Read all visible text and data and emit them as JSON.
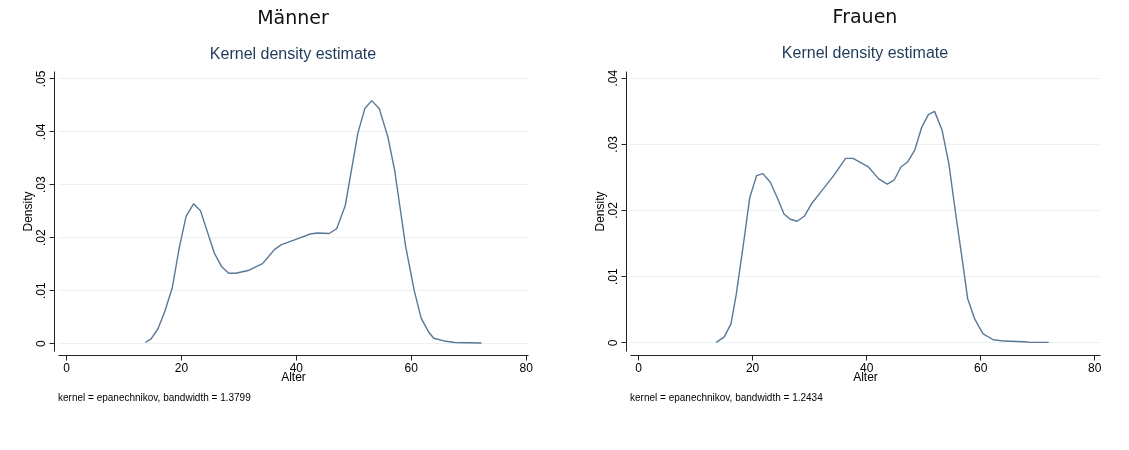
{
  "chart_data": [
    {
      "type": "line",
      "title": "Männer",
      "subtitle": "Kernel density estimate",
      "xlabel": "Alter",
      "ylabel": "Density",
      "annotations": [
        "kernel = epanechnikov, bandwidth = 1.3799"
      ],
      "grid": "y",
      "xlim": [
        -1.4,
        80.4
      ],
      "ylim": [
        -0.0015,
        0.0514
      ],
      "xticks": [
        0,
        20,
        40,
        60,
        80
      ],
      "yticks": [
        0,
        {
          "value": 0.01,
          "label": ".01"
        },
        {
          "value": 0.02,
          "label": ".02"
        },
        {
          "value": 0.03,
          "label": ".03"
        },
        {
          "value": 0.04,
          "label": ".04"
        },
        {
          "value": 0.05,
          "label": ".05"
        }
      ],
      "x": [
        13.8,
        14.8,
        16,
        17.2,
        18.5,
        19.7,
        20.9,
        22.2,
        23.4,
        24.6,
        25.8,
        27.1,
        28.3,
        29.5,
        31.7,
        34.2,
        36.3,
        37.5,
        40,
        42.5,
        43.7,
        45.8,
        47.1,
        48.6,
        50.8,
        52,
        53.2,
        54.5,
        56,
        57.2,
        59.1,
        60.6,
        61.8,
        63.1,
        64,
        65.8,
        67.7,
        72.3
      ],
      "series": [
        {
          "color": "#5a7896",
          "values": [
            0.0001,
            0.0008,
            0.0027,
            0.006,
            0.0105,
            0.018,
            0.024,
            0.0263,
            0.025,
            0.021,
            0.017,
            0.0144,
            0.0132,
            0.0132,
            0.0137,
            0.015,
            0.0177,
            0.0186,
            0.0196,
            0.0206,
            0.0208,
            0.0207,
            0.0216,
            0.026,
            0.0397,
            0.0443,
            0.0458,
            0.0443,
            0.039,
            0.0326,
            0.0183,
            0.0099,
            0.0047,
            0.0021,
            0.0009,
            0.0004,
            0.0001,
            0
          ]
        }
      ]
    },
    {
      "type": "line",
      "title": "Frauen",
      "subtitle": "Kernel density estimate",
      "xlabel": "Alter",
      "ylabel": "Density",
      "annotations": [
        "kernel = epanechnikov, bandwidth = 1.2434"
      ],
      "grid": "y",
      "xlim": [
        -1.4,
        81
      ],
      "ylim": [
        -0.0013,
        0.041
      ],
      "xticks": [
        0,
        20,
        40,
        60,
        80
      ],
      "yticks": [
        0,
        {
          "value": 0.01,
          "label": ".01"
        },
        {
          "value": 0.02,
          "label": ".02"
        },
        {
          "value": 0.03,
          "label": ".03"
        },
        {
          "value": 0.04,
          "label": ".04"
        }
      ],
      "x": [
        13.7,
        15.1,
        16.3,
        17.2,
        18.4,
        19.6,
        20.8,
        21.9,
        23.2,
        24.4,
        25.6,
        26.7,
        27.9,
        29.2,
        30.4,
        32.2,
        34.3,
        36.4,
        37.7,
        40.4,
        42.2,
        43.7,
        44.9,
        46.1,
        47.3,
        48.5,
        49.7,
        50.9,
        52,
        53.3,
        54.5,
        55.7,
        56.9,
        57.8,
        59,
        60.5,
        62.3,
        64.2,
        67.8,
        68.7,
        72
      ],
      "series": [
        {
          "color": "#5a7896",
          "values": [
            0,
            0.0008,
            0.0028,
            0.0071,
            0.0143,
            0.0219,
            0.0252,
            0.0255,
            0.0242,
            0.0219,
            0.0194,
            0.0186,
            0.0183,
            0.0191,
            0.0209,
            0.0229,
            0.0252,
            0.0278,
            0.0278,
            0.0265,
            0.0247,
            0.0239,
            0.0245,
            0.0265,
            0.0273,
            0.029,
            0.0324,
            0.0344,
            0.0349,
            0.0321,
            0.027,
            0.0194,
            0.0122,
            0.0066,
            0.0036,
            0.0013,
            0.0004,
            0.0002,
            0.0001,
            0,
            0
          ]
        }
      ]
    }
  ]
}
